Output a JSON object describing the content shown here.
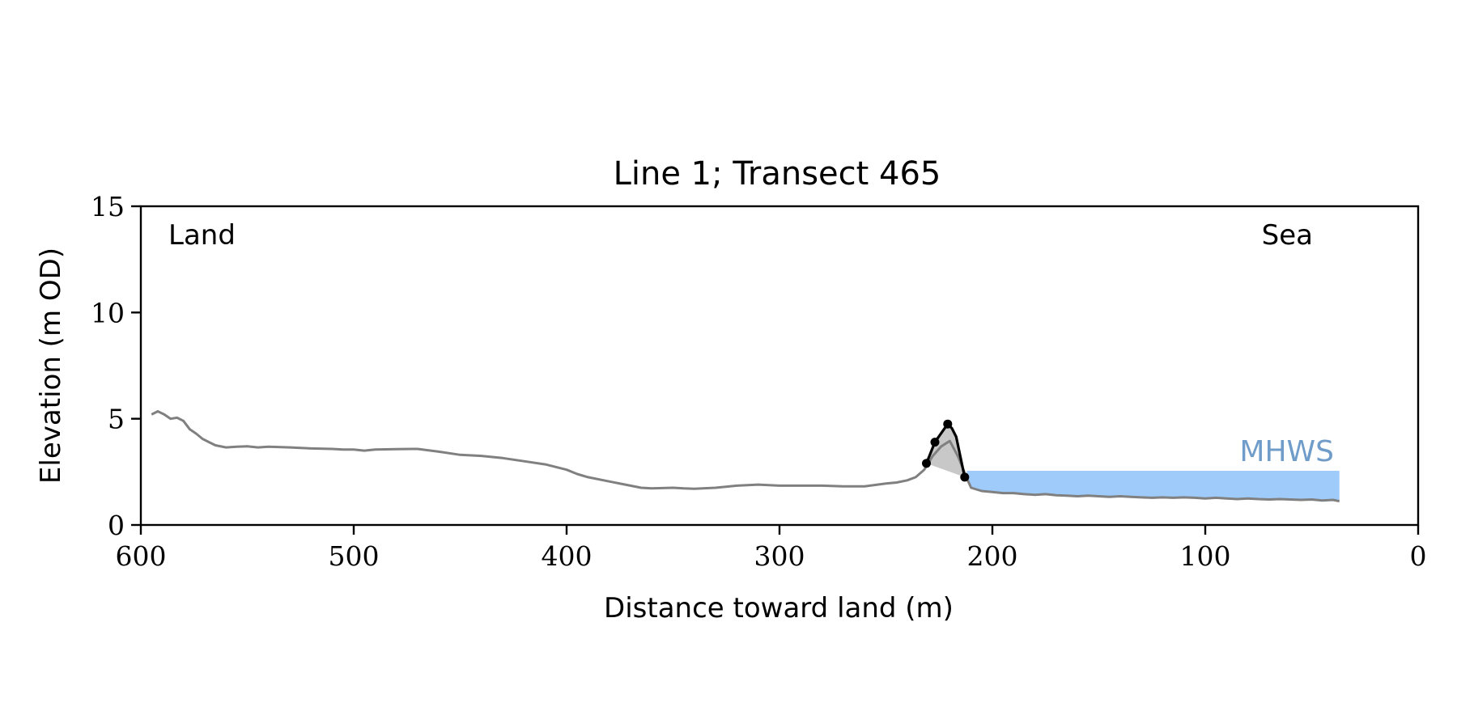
{
  "chart_data": {
    "type": "line",
    "title": "Line 1; Transect 465",
    "xlabel": "Distance toward land (m)",
    "ylabel": "Elevation (m OD)",
    "xlim": [
      600,
      0
    ],
    "ylim": [
      0,
      15
    ],
    "xticks": [
      600,
      500,
      400,
      300,
      200,
      100,
      0
    ],
    "yticks": [
      0,
      5,
      10,
      15
    ],
    "grid": false,
    "annotations": {
      "land": "Land",
      "sea": "Sea",
      "mhws": "MHWS"
    },
    "colors": {
      "profile": "#808080",
      "dune": "#000000",
      "dune_fill": "#c8c8c8",
      "water": "#9ecbfa",
      "mhws_text": "#6f9cc9"
    },
    "mhws": {
      "level": 2.55,
      "x_start": 212,
      "x_end": 37
    },
    "profile": {
      "x": [
        595,
        592,
        589,
        586,
        583,
        580,
        577,
        574,
        571,
        568,
        565,
        560,
        555,
        550,
        545,
        540,
        530,
        520,
        510,
        505,
        500,
        495,
        490,
        480,
        470,
        460,
        450,
        440,
        430,
        420,
        410,
        400,
        395,
        390,
        380,
        370,
        365,
        360,
        350,
        345,
        340,
        330,
        320,
        310,
        300,
        290,
        280,
        270,
        260,
        250,
        245,
        240,
        236,
        232,
        228,
        224,
        220,
        216,
        212,
        210,
        205,
        200,
        195,
        190,
        185,
        180,
        175,
        170,
        165,
        160,
        155,
        150,
        145,
        140,
        135,
        130,
        125,
        120,
        115,
        110,
        105,
        100,
        95,
        90,
        85,
        80,
        75,
        70,
        65,
        60,
        55,
        50,
        45,
        40,
        37
      ],
      "y": [
        5.2,
        5.35,
        5.2,
        5.0,
        5.05,
        4.9,
        4.5,
        4.3,
        4.05,
        3.9,
        3.75,
        3.65,
        3.68,
        3.7,
        3.65,
        3.68,
        3.65,
        3.6,
        3.58,
        3.55,
        3.55,
        3.5,
        3.55,
        3.57,
        3.58,
        3.45,
        3.3,
        3.25,
        3.15,
        3.0,
        2.85,
        2.6,
        2.4,
        2.25,
        2.05,
        1.85,
        1.75,
        1.72,
        1.75,
        1.72,
        1.7,
        1.75,
        1.85,
        1.9,
        1.85,
        1.85,
        1.85,
        1.82,
        1.82,
        1.95,
        2.0,
        2.1,
        2.25,
        2.6,
        3.25,
        3.7,
        3.95,
        3.2,
        2.2,
        1.75,
        1.6,
        1.55,
        1.5,
        1.5,
        1.45,
        1.42,
        1.45,
        1.4,
        1.38,
        1.35,
        1.38,
        1.35,
        1.32,
        1.35,
        1.32,
        1.3,
        1.28,
        1.3,
        1.28,
        1.3,
        1.28,
        1.25,
        1.28,
        1.25,
        1.22,
        1.25,
        1.22,
        1.2,
        1.22,
        1.2,
        1.18,
        1.2,
        1.15,
        1.18,
        1.12
      ]
    },
    "dune": {
      "x": [
        231,
        227,
        221,
        219,
        217,
        213
      ],
      "y": [
        2.9,
        3.9,
        4.75,
        4.55,
        4.15,
        2.25
      ]
    },
    "dune_points": {
      "x": [
        231,
        227,
        221,
        213
      ],
      "y": [
        2.9,
        3.9,
        4.75,
        2.25
      ]
    }
  }
}
